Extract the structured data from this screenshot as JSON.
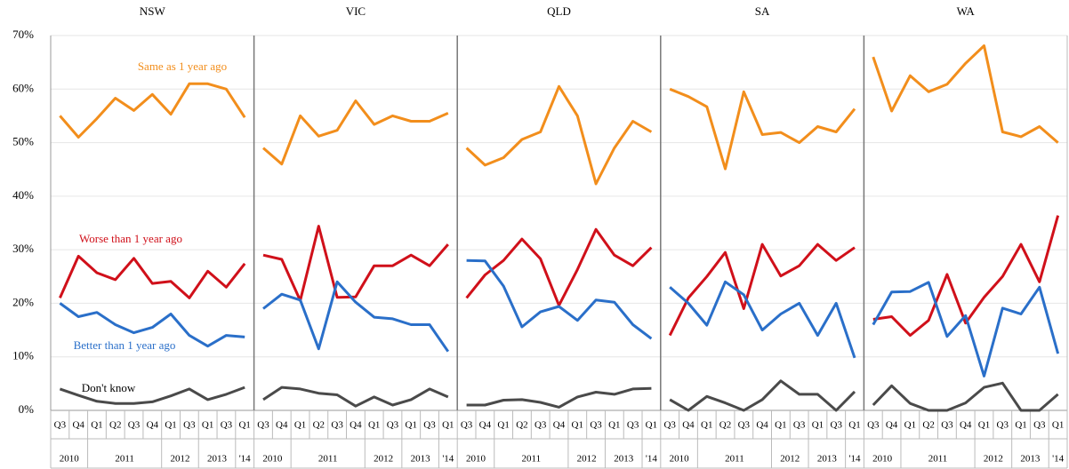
{
  "chart_data": [
    {
      "type": "line",
      "title": "NSW",
      "categories": [
        "Q3",
        "Q4",
        "Q1",
        "Q2",
        "Q3",
        "Q4",
        "Q1",
        "Q3",
        "Q1",
        "Q3",
        "Q1"
      ],
      "years": [
        "2010",
        null,
        "2011",
        null,
        null,
        null,
        "2012",
        null,
        "2013",
        null,
        "'14"
      ],
      "ylim": [
        0,
        70
      ],
      "yticks": [
        {
          "value": 0,
          "label": "0%"
        },
        {
          "value": 10,
          "label": "10%"
        },
        {
          "value": 20,
          "label": "20%"
        },
        {
          "value": 30,
          "label": "30%"
        },
        {
          "value": 40,
          "label": "40%"
        },
        {
          "value": 50,
          "label": "50%"
        },
        {
          "value": 60,
          "label": "60%"
        },
        {
          "value": 70,
          "label": "70%"
        }
      ],
      "grid": true,
      "series": [
        {
          "name": "Same as 1 year ago",
          "color": "#f28e1c",
          "values": [
            55,
            51,
            54.5,
            58.3,
            56,
            59,
            55.3,
            61,
            61,
            60,
            54.7
          ]
        },
        {
          "name": "Worse than 1 year ago",
          "color": "#d0101a",
          "values": [
            21,
            28.8,
            25.7,
            24.4,
            28.4,
            23.7,
            24.1,
            21,
            26,
            23,
            27.4
          ]
        },
        {
          "name": "Better than 1 year ago",
          "color": "#2a6fc9",
          "values": [
            20,
            17.5,
            18.3,
            16,
            14.5,
            15.5,
            18,
            14,
            12,
            14,
            13.7
          ]
        },
        {
          "name": "Don't know",
          "color": "#4a4a4a",
          "values": [
            4,
            2.8,
            1.7,
            1.3,
            1.3,
            1.6,
            2.7,
            4,
            2,
            3,
            4.3
          ]
        }
      ]
    },
    {
      "type": "line",
      "title": "VIC",
      "categories": [
        "Q3",
        "Q4",
        "Q1",
        "Q2",
        "Q3",
        "Q4",
        "Q1",
        "Q3",
        "Q1",
        "Q3",
        "Q1"
      ],
      "years": [
        "2010",
        null,
        "2011",
        null,
        null,
        null,
        "2012",
        null,
        "2013",
        null,
        "'14"
      ],
      "series": [
        {
          "color": "#f28e1c",
          "values": [
            49,
            46,
            55,
            51.2,
            52.3,
            57.8,
            53.4,
            55,
            54,
            54,
            55.5
          ]
        },
        {
          "color": "#d0101a",
          "values": [
            29,
            28.2,
            20.5,
            34.4,
            21.1,
            21.2,
            27,
            27,
            29,
            27,
            31
          ]
        },
        {
          "color": "#2a6fc9",
          "values": [
            19,
            21.7,
            20.6,
            11.5,
            24,
            20.2,
            17.4,
            17.1,
            16,
            16,
            11
          ]
        },
        {
          "color": "#4a4a4a",
          "values": [
            2,
            4.3,
            4,
            3.2,
            2.9,
            0.8,
            2.5,
            1,
            2,
            4,
            2.5
          ]
        }
      ]
    },
    {
      "type": "line",
      "title": "QLD",
      "categories": [
        "Q3",
        "Q4",
        "Q1",
        "Q2",
        "Q3",
        "Q4",
        "Q1",
        "Q3",
        "Q1",
        "Q3",
        "Q1"
      ],
      "years": [
        "2010",
        null,
        "2011",
        null,
        null,
        null,
        "2012",
        null,
        "2013",
        null,
        "'14"
      ],
      "series": [
        {
          "color": "#f28e1c",
          "values": [
            49,
            45.8,
            47.2,
            50.6,
            52,
            60.5,
            55,
            42.3,
            49,
            54,
            52
          ]
        },
        {
          "color": "#d0101a",
          "values": [
            21,
            25.3,
            28,
            32,
            28.3,
            19.6,
            26.3,
            33.8,
            29,
            27,
            30.4
          ]
        },
        {
          "color": "#2a6fc9",
          "values": [
            28,
            27.9,
            23.2,
            15.6,
            18.4,
            19.4,
            16.8,
            20.6,
            20.2,
            16,
            13.4
          ]
        },
        {
          "color": "#4a4a4a",
          "values": [
            1,
            1,
            1.9,
            2,
            1.5,
            0.6,
            2.5,
            3.4,
            3,
            4,
            4.1
          ]
        }
      ]
    },
    {
      "type": "line",
      "title": "SA",
      "categories": [
        "Q3",
        "Q4",
        "Q1",
        "Q2",
        "Q3",
        "Q4",
        "Q1",
        "Q3",
        "Q1",
        "Q3",
        "Q1"
      ],
      "years": [
        "2010",
        null,
        "2011",
        null,
        null,
        null,
        "2012",
        null,
        "2013",
        null,
        "'14"
      ],
      "series": [
        {
          "color": "#f28e1c",
          "values": [
            60,
            58.6,
            56.7,
            45.1,
            59.5,
            51.5,
            51.9,
            50,
            53,
            52,
            56.3
          ]
        },
        {
          "color": "#d0101a",
          "values": [
            14,
            21,
            25,
            29.5,
            19,
            31,
            25.1,
            27,
            31,
            28,
            30.4
          ]
        },
        {
          "color": "#2a6fc9",
          "values": [
            23,
            20,
            15.9,
            24,
            21.6,
            15,
            18,
            20,
            14,
            20,
            9.8
          ]
        },
        {
          "color": "#4a4a4a",
          "values": [
            2,
            0,
            2.6,
            1.4,
            0,
            2,
            5.5,
            3,
            3,
            0,
            3.5
          ]
        }
      ]
    },
    {
      "type": "line",
      "title": "WA",
      "categories": [
        "Q3",
        "Q4",
        "Q1",
        "Q2",
        "Q3",
        "Q4",
        "Q1",
        "Q3",
        "Q1",
        "Q3",
        "Q1"
      ],
      "years": [
        "2010",
        null,
        "2011",
        null,
        null,
        null,
        "2012",
        null,
        "2013",
        null,
        "'14"
      ],
      "series": [
        {
          "color": "#f28e1c",
          "values": [
            66,
            55.9,
            62.5,
            59.5,
            60.9,
            64.8,
            68.1,
            52,
            51.1,
            53,
            50
          ]
        },
        {
          "color": "#d0101a",
          "values": [
            17,
            17.5,
            14,
            16.8,
            25.4,
            16.3,
            21.1,
            25,
            31,
            24,
            36.4
          ]
        },
        {
          "color": "#2a6fc9",
          "values": [
            16,
            22.1,
            22.2,
            23.9,
            13.8,
            17.7,
            6.4,
            19.1,
            18,
            23,
            10.6
          ]
        },
        {
          "color": "#4a4a4a",
          "values": [
            1,
            4.6,
            1.3,
            0,
            0,
            1.4,
            4.3,
            5.1,
            0,
            0,
            3
          ]
        }
      ]
    }
  ]
}
